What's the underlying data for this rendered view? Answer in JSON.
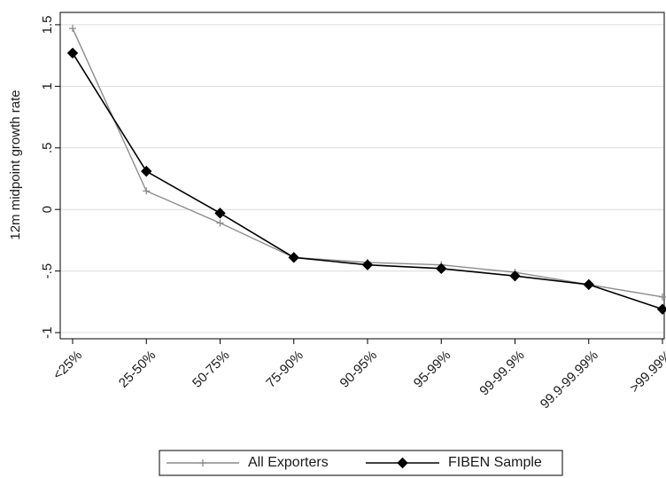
{
  "chart_data": {
    "type": "line",
    "title": "",
    "xlabel": "",
    "ylabel": "12m midpoint growth rate",
    "categories": [
      "<25%",
      "25-50%",
      "50-75%",
      "75-90%",
      "90-95%",
      "95-99%",
      "99-99.9%",
      "99.9-99.99%",
      ">99.99%"
    ],
    "yticks": [
      -1,
      -0.5,
      0,
      0.5,
      1,
      1.5
    ],
    "ytick_labels": [
      "-1",
      "-.5",
      "0",
      ".5",
      "1",
      "1.5"
    ],
    "ylim": [
      -1.05,
      1.6
    ],
    "grid": true,
    "legend_position": "bottom",
    "series": [
      {
        "name": "All Exporters",
        "color": "#8c8c8c",
        "marker": "plus",
        "values": [
          1.47,
          0.15,
          -0.11,
          -0.39,
          -0.43,
          -0.45,
          -0.51,
          -0.61,
          -0.71
        ]
      },
      {
        "name": "FIBEN Sample",
        "color": "#000000",
        "marker": "diamond",
        "values": [
          1.27,
          0.31,
          -0.03,
          -0.39,
          -0.45,
          -0.48,
          -0.54,
          -0.61,
          -0.81
        ]
      }
    ]
  }
}
